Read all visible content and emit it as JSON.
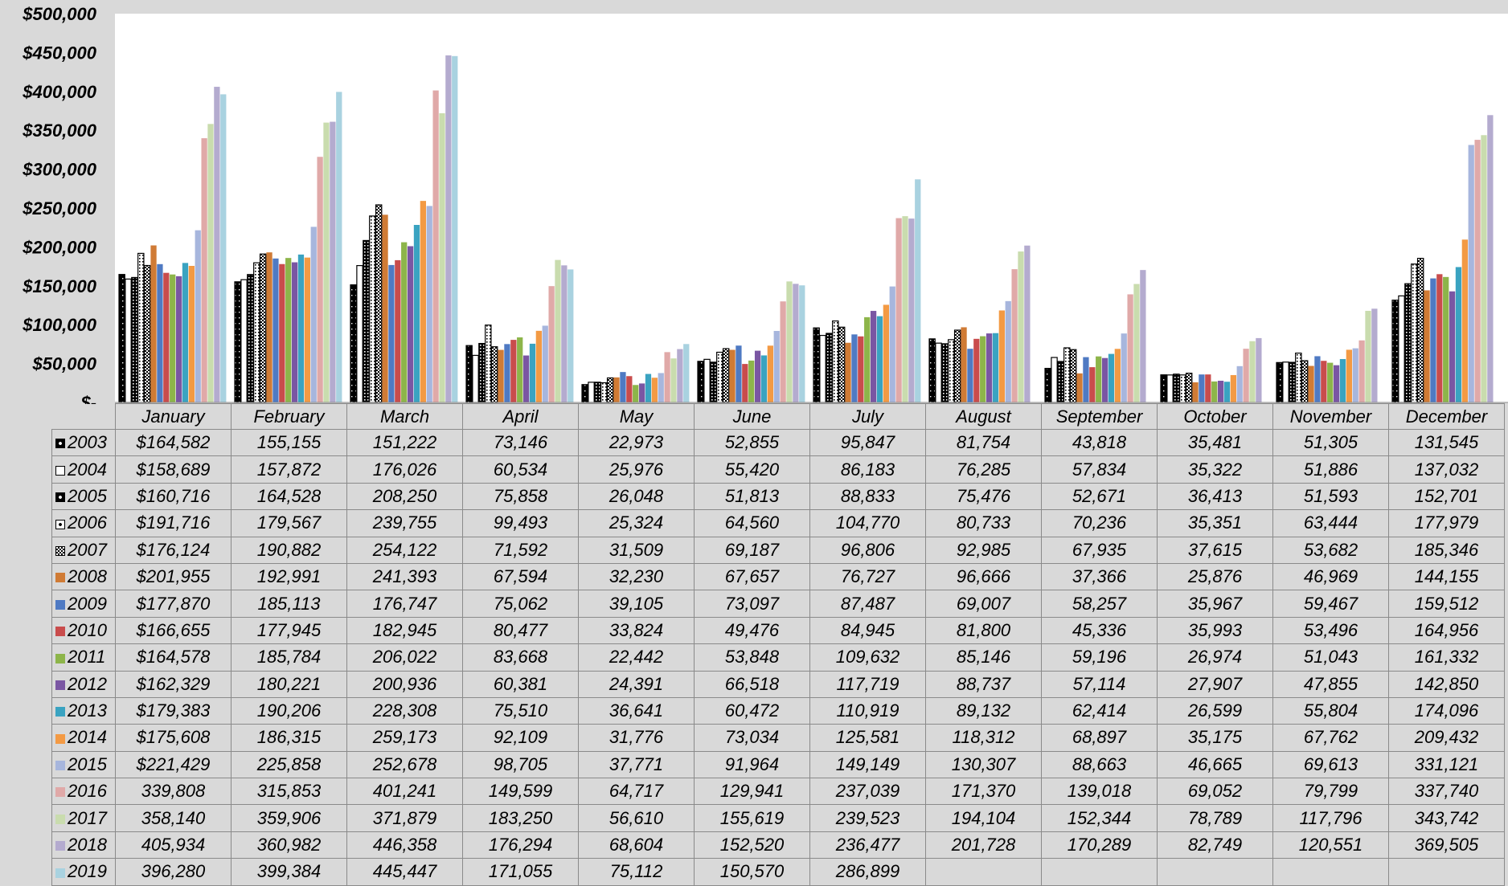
{
  "chart_data": {
    "type": "bar",
    "categories": [
      "January",
      "February",
      "March",
      "April",
      "May",
      "June",
      "July",
      "August",
      "September",
      "October",
      "November",
      "December"
    ],
    "y_ticks": [
      "$-",
      "$50,000",
      "$100,000",
      "$150,000",
      "$200,000",
      "$250,000",
      "$300,000",
      "$350,000",
      "$400,000",
      "$450,000",
      "$500,000"
    ],
    "ylim": [
      0,
      500000
    ],
    "legend": "table-left",
    "series": [
      {
        "name": "2003",
        "color": "#000000",
        "pattern": "solid-dots",
        "values": [
          164582,
          155155,
          151222,
          73146,
          22973,
          52855,
          95847,
          81754,
          43818,
          35481,
          51305,
          131545
        ],
        "labels": [
          "$164,582",
          "155,155",
          "151,222",
          "73,146",
          "22,973",
          "52,855",
          "95,847",
          "81,754",
          "43,818",
          "35,481",
          "51,305",
          "131,545"
        ]
      },
      {
        "name": "2004",
        "color": "#ffffff",
        "pattern": "outline",
        "values": [
          158689,
          157872,
          176026,
          60534,
          25976,
          55420,
          86183,
          76285,
          57834,
          35322,
          51886,
          137032
        ],
        "labels": [
          "$158,689",
          "157,872",
          "176,026",
          "60,534",
          "25,976",
          "55,420",
          "86,183",
          "76,285",
          "57,834",
          "35,322",
          "51,886",
          "137,032"
        ]
      },
      {
        "name": "2005",
        "color": "#000000",
        "pattern": "black-dots",
        "values": [
          160716,
          164528,
          208250,
          75858,
          26048,
          51813,
          88833,
          75476,
          52671,
          36413,
          51593,
          152701
        ],
        "labels": [
          "$160,716",
          "164,528",
          "208,250",
          "75,858",
          "26,048",
          "51,813",
          "88,833",
          "75,476",
          "52,671",
          "36,413",
          "51,593",
          "152,701"
        ]
      },
      {
        "name": "2006",
        "color": "#ffffff",
        "pattern": "white-dots",
        "values": [
          191716,
          179567,
          239755,
          99493,
          25324,
          64560,
          104770,
          80733,
          70236,
          35351,
          63444,
          177979
        ],
        "labels": [
          "$191,716",
          "179,567",
          "239,755",
          "99,493",
          "25,324",
          "64,560",
          "104,770",
          "80,733",
          "70,236",
          "35,351",
          "63,444",
          "177,979"
        ]
      },
      {
        "name": "2007",
        "color": "#ffffff",
        "pattern": "checker",
        "values": [
          176124,
          190882,
          254122,
          71592,
          31509,
          69187,
          96806,
          92985,
          67935,
          37615,
          53682,
          185346
        ],
        "labels": [
          "$176,124",
          "190,882",
          "254,122",
          "71,592",
          "31,509",
          "69,187",
          "96,806",
          "92,985",
          "67,935",
          "37,615",
          "53,682",
          "185,346"
        ]
      },
      {
        "name": "2008",
        "color": "#d07b35",
        "values": [
          201955,
          192991,
          241393,
          67594,
          32230,
          67657,
          76727,
          96666,
          37366,
          25876,
          46969,
          144155
        ],
        "labels": [
          "$201,955",
          "192,991",
          "241,393",
          "67,594",
          "32,230",
          "67,657",
          "76,727",
          "96,666",
          "37,366",
          "25,876",
          "46,969",
          "144,155"
        ]
      },
      {
        "name": "2009",
        "color": "#4f7ac3",
        "values": [
          177870,
          185113,
          176747,
          75062,
          39105,
          73097,
          87487,
          69007,
          58257,
          35967,
          59467,
          159512
        ],
        "labels": [
          "$177,870",
          "185,113",
          "176,747",
          "75,062",
          "39,105",
          "73,097",
          "87,487",
          "69,007",
          "58,257",
          "35,967",
          "59,467",
          "159,512"
        ]
      },
      {
        "name": "2010",
        "color": "#c94c4c",
        "values": [
          166655,
          177945,
          182945,
          80477,
          33824,
          49476,
          84945,
          81800,
          45336,
          35993,
          53496,
          164956
        ],
        "labels": [
          "$166,655",
          "177,945",
          "182,945",
          "80,477",
          "33,824",
          "49,476",
          "84,945",
          "81,800",
          "45,336",
          "35,993",
          "53,496",
          "164,956"
        ]
      },
      {
        "name": "2011",
        "color": "#8db54a",
        "values": [
          164578,
          185784,
          206022,
          83668,
          22442,
          53848,
          109632,
          85146,
          59196,
          26974,
          51043,
          161332
        ],
        "labels": [
          "$164,578",
          "185,784",
          "206,022",
          "83,668",
          "22,442",
          "53,848",
          "109,632",
          "85,146",
          "59,196",
          "26,974",
          "51,043",
          "161,332"
        ]
      },
      {
        "name": "2012",
        "color": "#7a56a3",
        "values": [
          162329,
          180221,
          200936,
          60381,
          24391,
          66518,
          117719,
          88737,
          57114,
          27907,
          47855,
          142850
        ],
        "labels": [
          "$162,329",
          "180,221",
          "200,936",
          "60,381",
          "24,391",
          "66,518",
          "117,719",
          "88,737",
          "57,114",
          "27,907",
          "47,855",
          "142,850"
        ]
      },
      {
        "name": "2013",
        "color": "#3aa3c1",
        "values": [
          179383,
          190206,
          228308,
          75510,
          36641,
          60472,
          110919,
          89132,
          62414,
          26599,
          55804,
          174096
        ],
        "labels": [
          "$179,383",
          "190,206",
          "228,308",
          "75,510",
          "36,641",
          "60,472",
          "110,919",
          "89,132",
          "62,414",
          "26,599",
          "55,804",
          "174,096"
        ]
      },
      {
        "name": "2014",
        "color": "#f39a44",
        "values": [
          175608,
          186315,
          259173,
          92109,
          31776,
          73034,
          125581,
          118312,
          68897,
          35175,
          67762,
          209432
        ],
        "labels": [
          "$175,608",
          "186,315",
          "259,173",
          "92,109",
          "31,776",
          "73,034",
          "125,581",
          "118,312",
          "68,897",
          "35,175",
          "67,762",
          "209,432"
        ]
      },
      {
        "name": "2015",
        "color": "#a7b6dd",
        "values": [
          221429,
          225858,
          252678,
          98705,
          37771,
          91964,
          149149,
          130307,
          88663,
          46665,
          69613,
          331121
        ],
        "labels": [
          "$221,429",
          "225,858",
          "252,678",
          "98,705",
          "37,771",
          "91,964",
          "149,149",
          "130,307",
          "88,663",
          "46,665",
          "69,613",
          "331,121"
        ]
      },
      {
        "name": "2016",
        "color": "#e0a9a8",
        "values": [
          339808,
          315853,
          401241,
          149599,
          64717,
          129941,
          237039,
          171370,
          139018,
          69052,
          79799,
          337740
        ],
        "labels": [
          "339,808",
          "315,853",
          "401,241",
          "149,599",
          "64,717",
          "129,941",
          "237,039",
          "171,370",
          "139,018",
          "69,052",
          "79,799",
          "337,740"
        ]
      },
      {
        "name": "2017",
        "color": "#c9dcae",
        "values": [
          358140,
          359906,
          371879,
          183250,
          56610,
          155619,
          239523,
          194104,
          152344,
          78789,
          117796,
          343742
        ],
        "labels": [
          "358,140",
          "359,906",
          "371,879",
          "183,250",
          "56,610",
          "155,619",
          "239,523",
          "194,104",
          "152,344",
          "78,789",
          "117,796",
          "343,742"
        ]
      },
      {
        "name": "2018",
        "color": "#b4abcf",
        "values": [
          405934,
          360982,
          446358,
          176294,
          68604,
          152520,
          236477,
          201728,
          170289,
          82749,
          120551,
          369505
        ],
        "labels": [
          "405,934",
          "360,982",
          "446,358",
          "176,294",
          "68,604",
          "152,520",
          "236,477",
          "201,728",
          "170,289",
          "82,749",
          "120,551",
          "369,505"
        ]
      },
      {
        "name": "2019",
        "color": "#a9d2e0",
        "values": [
          396280,
          399384,
          445447,
          171055,
          75112,
          150570,
          286899,
          null,
          null,
          null,
          null,
          null
        ],
        "labels": [
          "396,280",
          "399,384",
          "445,447",
          "171,055",
          "75,112",
          "150,570",
          "286,899",
          "",
          "",
          "",
          "",
          ""
        ]
      }
    ]
  }
}
